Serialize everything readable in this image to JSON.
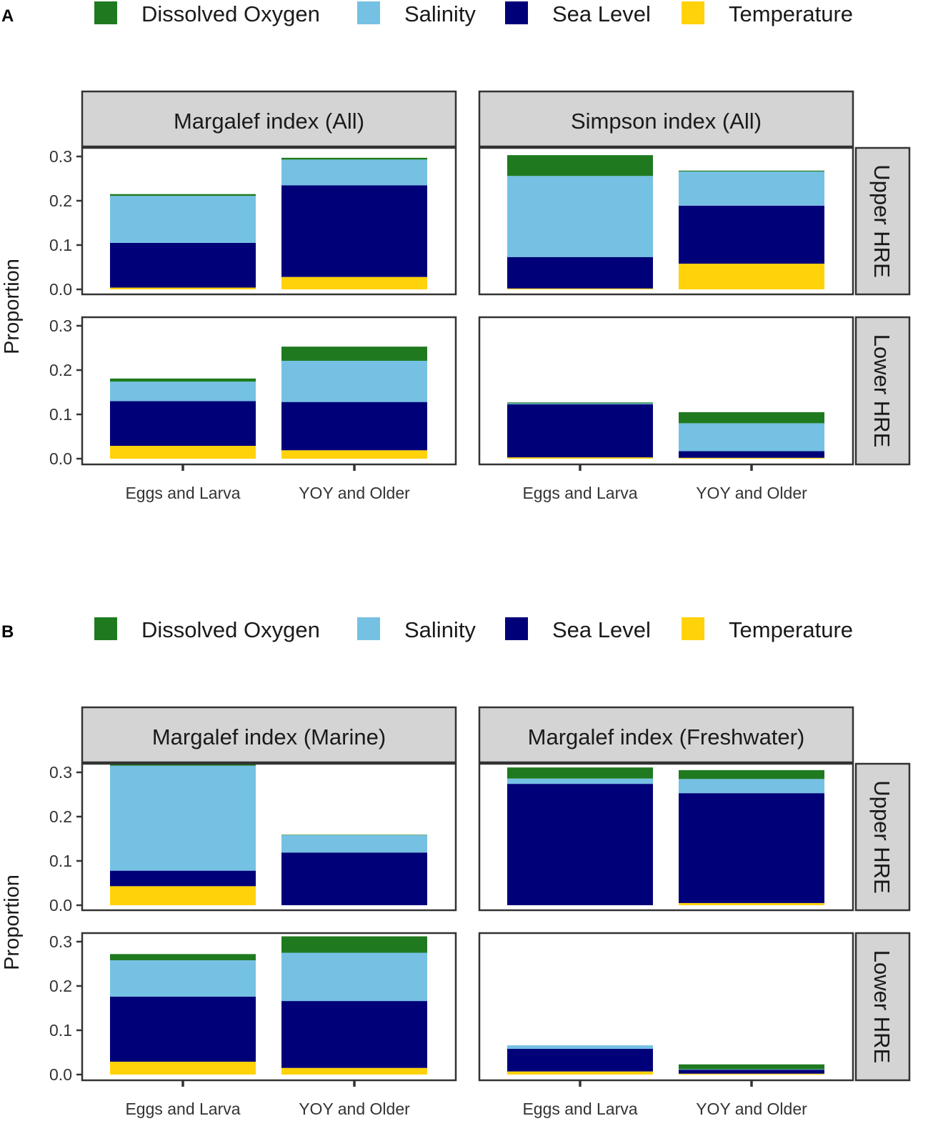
{
  "colors": {
    "Dissolved Oxygen": "#1f7a1f",
    "Salinity": "#75c1e4",
    "Sea Level": "#000078",
    "Temperature": "#ffd20a"
  },
  "chart_data": [
    {
      "type": "bar",
      "stacked": true,
      "panel_label": "A",
      "legend": [
        "Dissolved Oxygen",
        "Salinity",
        "Sea Level",
        "Temperature"
      ],
      "ylabel": "Proportion",
      "ylim": [
        0,
        0.32
      ],
      "yticks": [
        "0.0",
        "0.1",
        "0.2",
        "0.3"
      ],
      "categories": [
        "Eggs and Larva",
        "YOY and Older"
      ],
      "columns": [
        "Margalef index (All)",
        "Simpson index (All)"
      ],
      "rows": [
        "Upper HRE",
        "Lower HRE"
      ],
      "panels": [
        {
          "row": "Upper HRE",
          "column": "Margalef index (All)",
          "series": [
            {
              "name": "Temperature",
              "values": [
                0.004,
                0.028
              ]
            },
            {
              "name": "Sea Level",
              "values": [
                0.101,
                0.207
              ]
            },
            {
              "name": "Salinity",
              "values": [
                0.106,
                0.058
              ]
            },
            {
              "name": "Dissolved Oxygen",
              "values": [
                0.004,
                0.004
              ]
            }
          ]
        },
        {
          "row": "Upper HRE",
          "column": "Simpson index (All)",
          "series": [
            {
              "name": "Temperature",
              "values": [
                0.002,
                0.058
              ]
            },
            {
              "name": "Sea Level",
              "values": [
                0.071,
                0.131
              ]
            },
            {
              "name": "Salinity",
              "values": [
                0.183,
                0.077
              ]
            },
            {
              "name": "Dissolved Oxygen",
              "values": [
                0.047,
                0.002
              ]
            }
          ]
        },
        {
          "row": "Lower HRE",
          "column": "Margalef index (All)",
          "series": [
            {
              "name": "Temperature",
              "values": [
                0.029,
                0.019
              ]
            },
            {
              "name": "Sea Level",
              "values": [
                0.101,
                0.109
              ]
            },
            {
              "name": "Salinity",
              "values": [
                0.044,
                0.093
              ]
            },
            {
              "name": "Dissolved Oxygen",
              "values": [
                0.007,
                0.032
              ]
            }
          ]
        },
        {
          "row": "Lower HRE",
          "column": "Simpson index (All)",
          "series": [
            {
              "name": "Temperature",
              "values": [
                0.003,
                0.002
              ]
            },
            {
              "name": "Sea Level",
              "values": [
                0.12,
                0.015
              ]
            },
            {
              "name": "Salinity",
              "values": [
                0.002,
                0.063
              ]
            },
            {
              "name": "Dissolved Oxygen",
              "values": [
                0.002,
                0.025
              ]
            }
          ]
        }
      ]
    },
    {
      "type": "bar",
      "stacked": true,
      "panel_label": "B",
      "legend": [
        "Dissolved Oxygen",
        "Salinity",
        "Sea Level",
        "Temperature"
      ],
      "ylabel": "Proportion",
      "ylim": [
        0,
        0.32
      ],
      "yticks": [
        "0.0",
        "0.1",
        "0.2",
        "0.3"
      ],
      "categories": [
        "Eggs and Larva",
        "YOY and Older"
      ],
      "columns": [
        "Margalef index (Marine)",
        "Margalef index (Freshwater)"
      ],
      "rows": [
        "Upper HRE",
        "Lower HRE"
      ],
      "panels": [
        {
          "row": "Upper HRE",
          "column": "Margalef index (Marine)",
          "series": [
            {
              "name": "Temperature",
              "values": [
                0.043,
                0.0
              ]
            },
            {
              "name": "Sea Level",
              "values": [
                0.035,
                0.119
              ]
            },
            {
              "name": "Salinity",
              "values": [
                0.237,
                0.039
              ]
            },
            {
              "name": "Dissolved Oxygen",
              "values": [
                0.003,
                0.001
              ]
            }
          ]
        },
        {
          "row": "Upper HRE",
          "column": "Margalef index (Freshwater)",
          "series": [
            {
              "name": "Temperature",
              "values": [
                0.0,
                0.005
              ]
            },
            {
              "name": "Sea Level",
              "values": [
                0.274,
                0.248
              ]
            },
            {
              "name": "Salinity",
              "values": [
                0.012,
                0.032
              ]
            },
            {
              "name": "Dissolved Oxygen",
              "values": [
                0.025,
                0.02
              ]
            }
          ]
        },
        {
          "row": "Lower HRE",
          "column": "Margalef index (Marine)",
          "series": [
            {
              "name": "Temperature",
              "values": [
                0.029,
                0.015
              ]
            },
            {
              "name": "Sea Level",
              "values": [
                0.147,
                0.151
              ]
            },
            {
              "name": "Salinity",
              "values": [
                0.082,
                0.109
              ]
            },
            {
              "name": "Dissolved Oxygen",
              "values": [
                0.014,
                0.037
              ]
            }
          ]
        },
        {
          "row": "Lower HRE",
          "column": "Margalef index (Freshwater)",
          "series": [
            {
              "name": "Temperature",
              "values": [
                0.007,
                0.002
              ]
            },
            {
              "name": "Sea Level",
              "values": [
                0.051,
                0.009
              ]
            },
            {
              "name": "Salinity",
              "values": [
                0.008,
                0.001
              ]
            },
            {
              "name": "Dissolved Oxygen",
              "values": [
                0.0,
                0.011
              ]
            }
          ]
        }
      ]
    }
  ]
}
